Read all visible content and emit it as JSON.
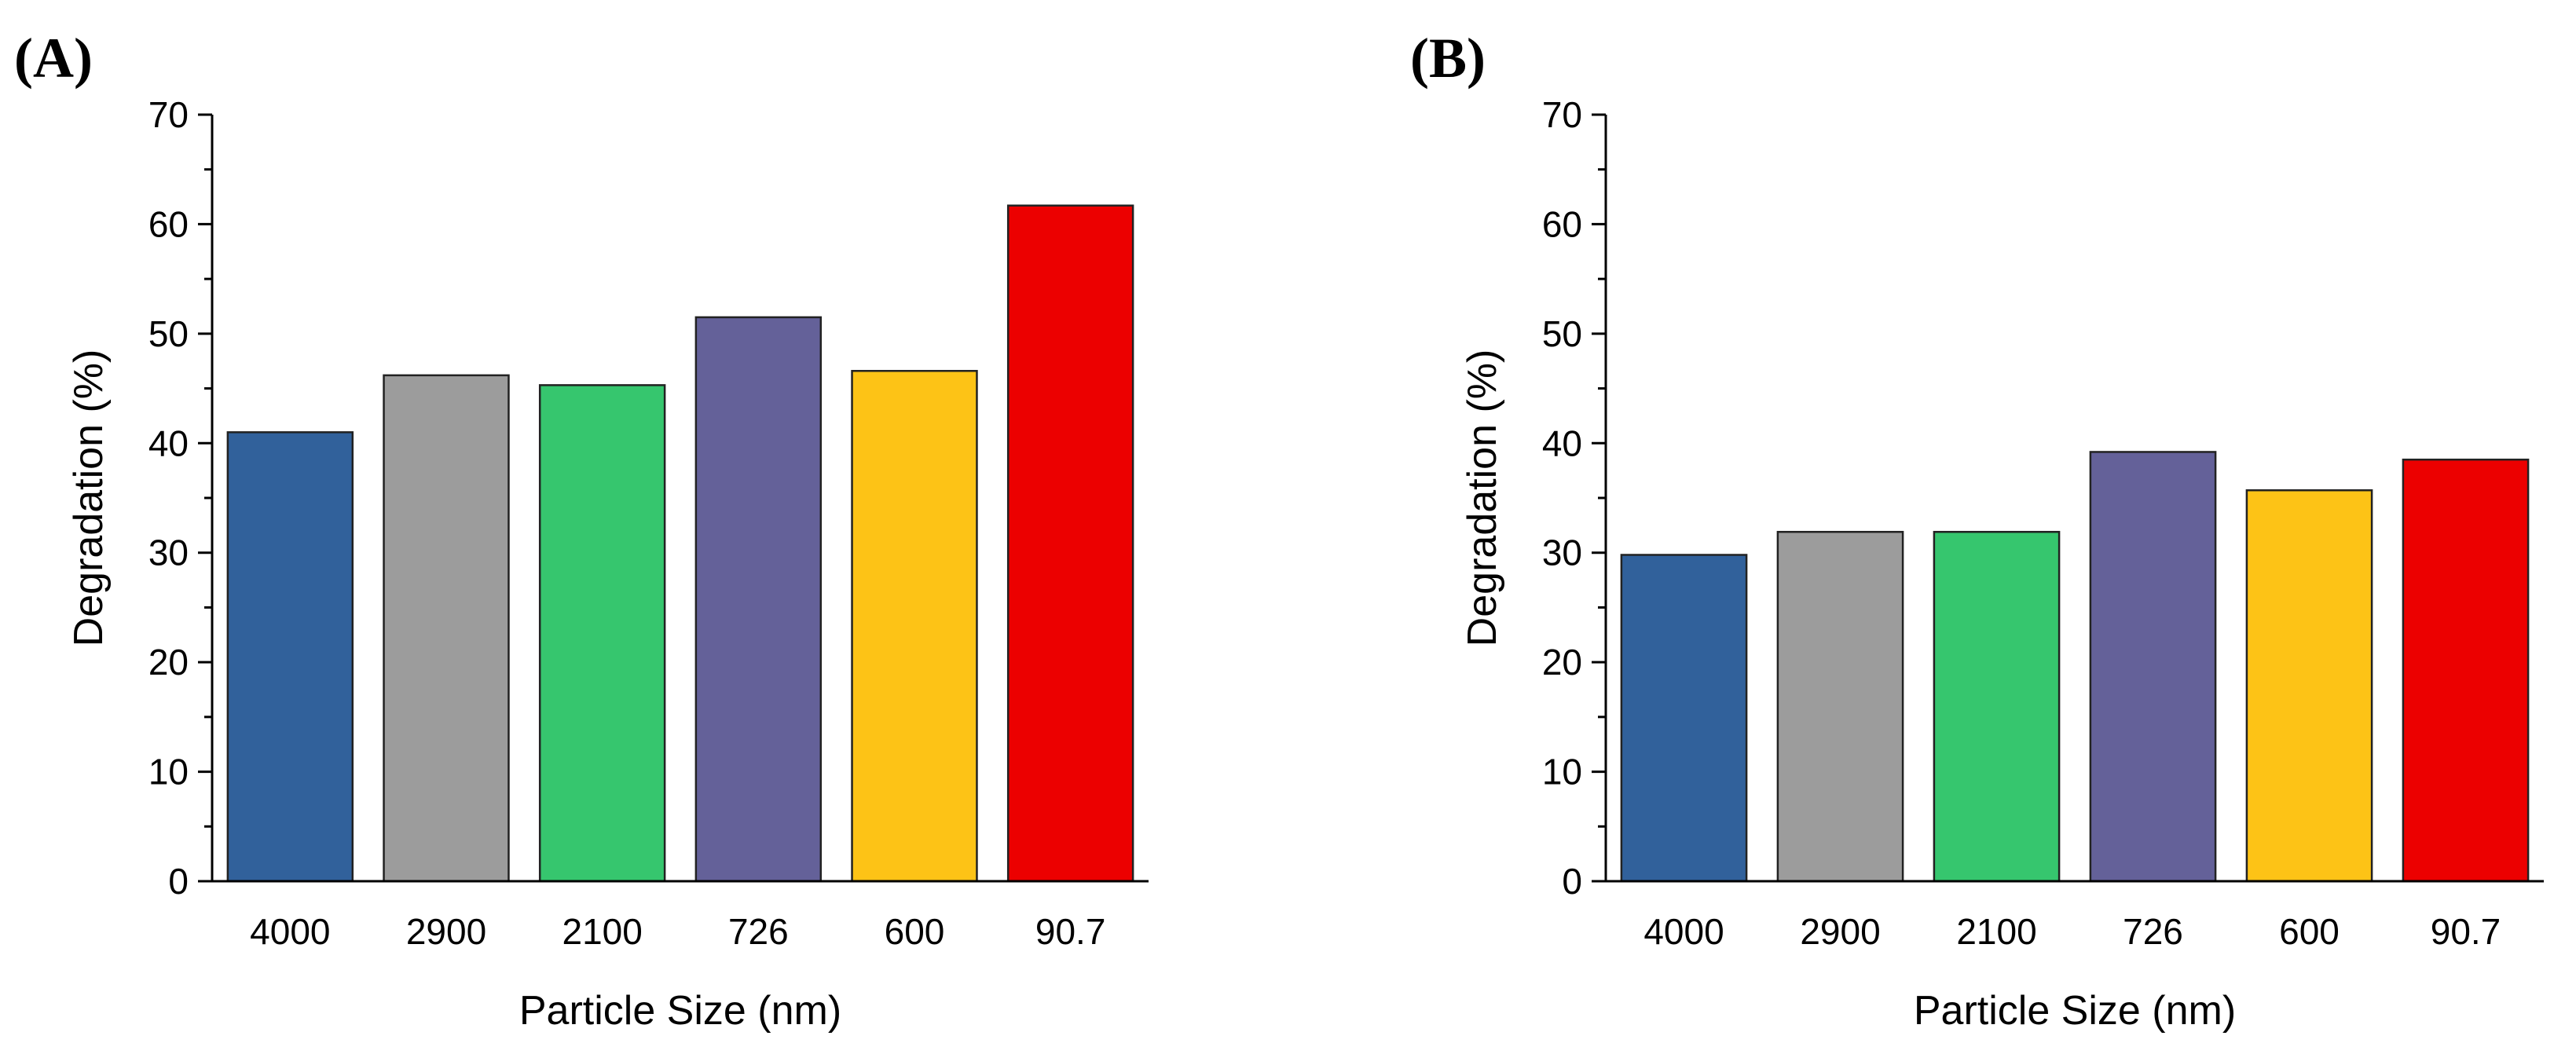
{
  "chart_data": [
    {
      "type": "bar",
      "panel_label": "(A)",
      "xlabel": "Particle Size (nm)",
      "ylabel": "Degradation (%)",
      "ylim": [
        0,
        70
      ],
      "yticks": [
        0,
        10,
        20,
        30,
        40,
        50,
        60,
        70
      ],
      "categories": [
        "4000",
        "2900",
        "2100",
        "726",
        "600",
        "90.7"
      ],
      "values": [
        41,
        46.2,
        45.3,
        51.5,
        46.6,
        61.7
      ],
      "colors": [
        "#31619B",
        "#9C9C9C",
        "#36C66E",
        "#646199",
        "#FDC316",
        "#EC0000"
      ]
    },
    {
      "type": "bar",
      "panel_label": "(B)",
      "xlabel": "Particle Size (nm)",
      "ylabel": "Degradation (%)",
      "ylim": [
        0,
        70
      ],
      "yticks": [
        0,
        10,
        20,
        30,
        40,
        50,
        60,
        70
      ],
      "categories": [
        "4000",
        "2900",
        "2100",
        "726",
        "600",
        "90.7"
      ],
      "values": [
        29.8,
        31.9,
        31.9,
        39.2,
        35.7,
        38.5
      ],
      "colors": [
        "#31619B",
        "#9C9C9C",
        "#36C66E",
        "#646199",
        "#FDC316",
        "#EC0000"
      ]
    }
  ]
}
